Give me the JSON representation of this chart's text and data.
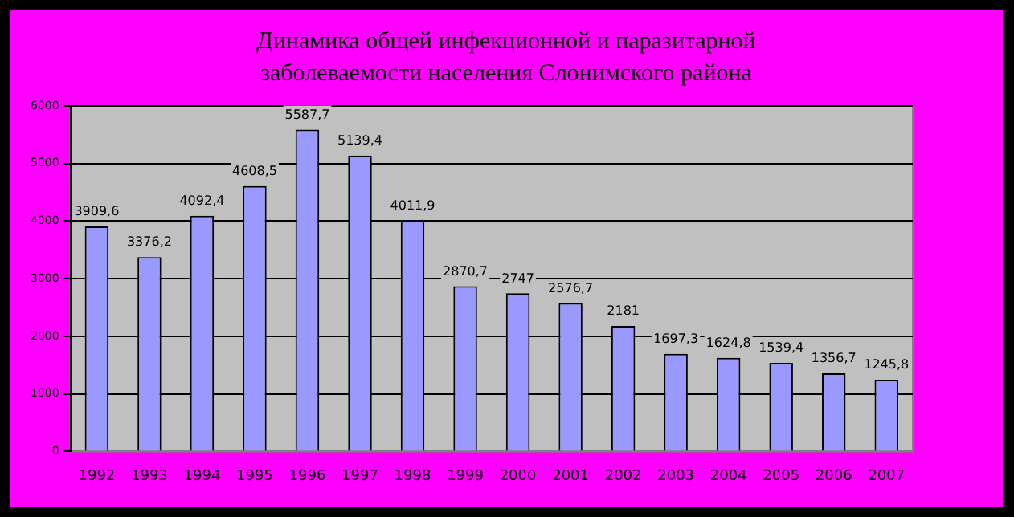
{
  "chart_data": {
    "type": "bar",
    "title": "Динамика общей инфекционной и паразитарной заболеваемости населения Слонимского района",
    "categories": [
      "1992",
      "1993",
      "1994",
      "1995",
      "1996",
      "1997",
      "1998",
      "1999",
      "2000",
      "2001",
      "2002",
      "2003",
      "2004",
      "2005",
      "2006",
      "2007"
    ],
    "values": [
      3909.6,
      3376.2,
      4092.4,
      4608.5,
      5587.7,
      5139.4,
      4011.9,
      2870.7,
      2747,
      2576.7,
      2181,
      1697.3,
      1624.8,
      1539.4,
      1356.7,
      1245.8
    ],
    "value_labels": [
      "3909,6",
      "3376,2",
      "4092,4",
      "4608,5",
      "5587,7",
      "5139,4",
      "4011,9",
      "2870,7",
      "2747",
      "2576,7",
      "2181",
      "1697,3",
      "1624,8",
      "1539,4",
      "1356,7",
      "1245,8"
    ],
    "color": "#9999ff",
    "ylim": [
      0,
      6000
    ],
    "yticks": [
      0,
      1000,
      2000,
      3000,
      4000,
      5000,
      6000
    ],
    "grid": "y",
    "legend": false
  }
}
